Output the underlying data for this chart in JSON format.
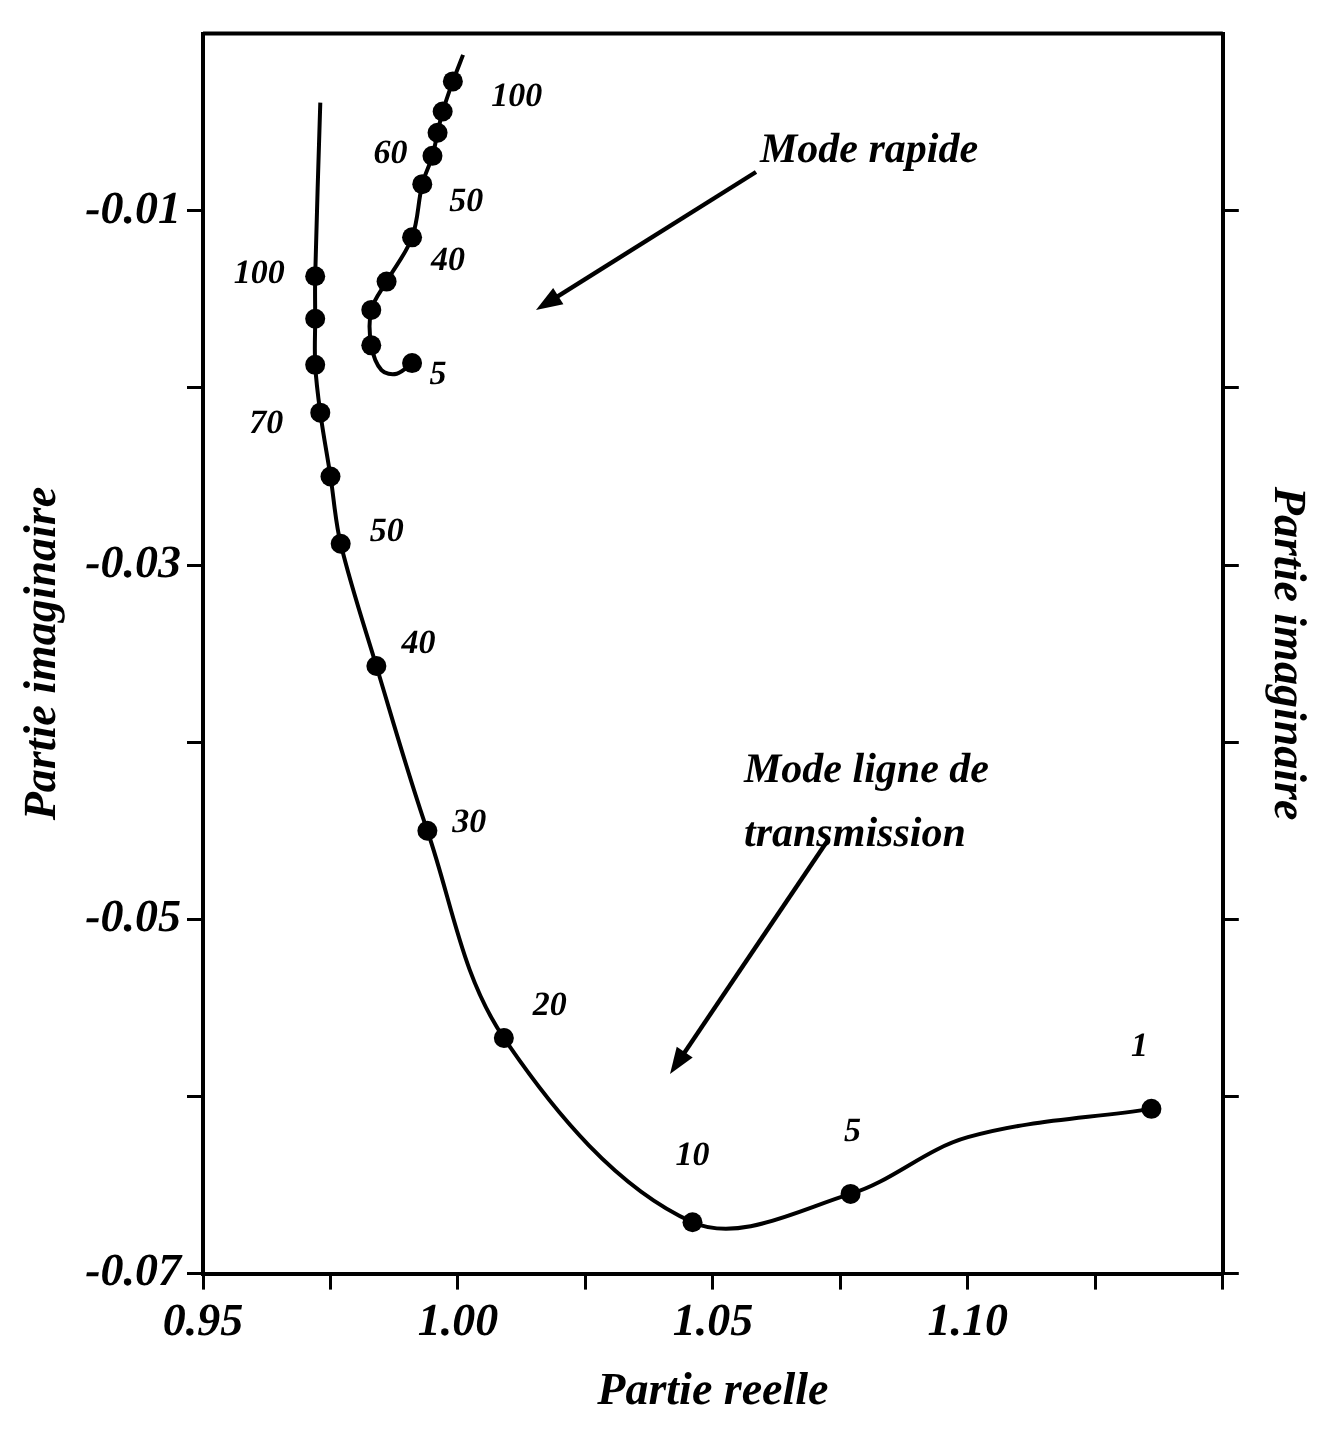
{
  "chart_data": {
    "type": "line",
    "xlabel": "Partie reelle",
    "ylabel": "Partie imaginaire",
    "y2label": "Partie imaginaire",
    "xlim": [
      0.95,
      1.15
    ],
    "xticks": [
      0.95,
      {
        "value": 0.975,
        "label": null
      },
      {
        "value": 1,
        "label": "1.00"
      },
      {
        "value": 1.025,
        "label": null
      },
      1.05,
      {
        "value": 1.075,
        "label": null
      },
      {
        "value": 1.1,
        "label": "1.10"
      },
      {
        "value": 1.125,
        "label": null
      },
      {
        "value": 1.15,
        "label": null
      }
    ],
    "ylim": [
      -0.07,
      0
    ],
    "yticks": [
      -0.07,
      {
        "value": -0.06,
        "label": null
      },
      -0.05,
      {
        "value": -0.04,
        "label": null
      },
      -0.03,
      {
        "value": -0.02,
        "label": null
      },
      -0.01
    ],
    "series": [
      {
        "color": "#000000",
        "marker": "none",
        "x": [
          0.973,
          0.972,
          0.972,
          0.972,
          0.973,
          0.975,
          0.977,
          0.984,
          0.994,
          1.009,
          1.046,
          1.077,
          1.1,
          1.136
        ],
        "values": [
          -0.0039,
          -0.0137,
          -0.0161,
          -0.0187,
          -0.0214,
          -0.025,
          -0.0288,
          -0.0357,
          -0.045,
          -0.0567,
          -0.0671,
          -0.0655,
          -0.0623,
          -0.0607
        ]
      },
      {
        "type": "scatter",
        "color": "#000000",
        "marker": "circle",
        "x": [
          0.972,
          0.972,
          0.972,
          0.973,
          0.975,
          0.977,
          0.984,
          0.994,
          1.009,
          1.046,
          1.077,
          1.136
        ],
        "values": [
          -0.0137,
          -0.0161,
          -0.0187,
          -0.0214,
          -0.025,
          -0.0288,
          -0.0357,
          -0.045,
          -0.0567,
          -0.0671,
          -0.0655,
          -0.0607
        ]
      },
      {
        "color": "#000000",
        "marker": "none",
        "x": [
          1.001,
          0.999,
          0.997,
          0.996,
          0.995,
          0.993,
          0.991,
          0.986,
          0.983,
          0.983,
          0.985,
          0.988,
          0.991
        ],
        "values": [
          -0.0012,
          -0.0027,
          -0.0044,
          -0.0056,
          -0.0069,
          -0.0085,
          -0.0115,
          -0.014,
          -0.0156,
          -0.0176,
          -0.019,
          -0.0192,
          -0.0186
        ]
      },
      {
        "type": "scatter",
        "color": "#000000",
        "marker": "circle",
        "x": [
          0.999,
          0.997,
          0.996,
          0.995,
          0.993,
          0.991,
          0.986,
          0.983,
          0.983,
          0.991
        ],
        "values": [
          -0.0027,
          -0.0044,
          -0.0056,
          -0.0069,
          -0.0085,
          -0.0115,
          -0.014,
          -0.0156,
          -0.0176,
          -0.0186
        ]
      }
    ],
    "annotations": [
      {
        "text": "100",
        "x": 0.972,
        "y": -0.0137
      },
      {
        "text": "70",
        "x": 0.973,
        "y": -0.0214
      },
      {
        "text": "50",
        "x": 0.977,
        "y": -0.0288
      },
      {
        "text": "40",
        "x": 0.984,
        "y": -0.0357
      },
      {
        "text": "30",
        "x": 0.994,
        "y": -0.045
      },
      {
        "text": "20",
        "x": 1.009,
        "y": -0.0567
      },
      {
        "text": "10",
        "x": 1.046,
        "y": -0.0671
      },
      {
        "text": "5",
        "x": 1.077,
        "y": -0.0655
      },
      {
        "text": "1",
        "x": 1.136,
        "y": -0.0607
      },
      {
        "text": "100",
        "x": 0.999,
        "y": -0.0027
      },
      {
        "text": "60",
        "x": 0.995,
        "y": -0.0069
      },
      {
        "text": "50",
        "x": 0.993,
        "y": -0.0085
      },
      {
        "text": "40",
        "x": 0.991,
        "y": -0.0115
      },
      {
        "text": "5",
        "x": 0.991,
        "y": -0.0186
      },
      "Mode rapide",
      "Mode ligne de transmission"
    ]
  }
}
